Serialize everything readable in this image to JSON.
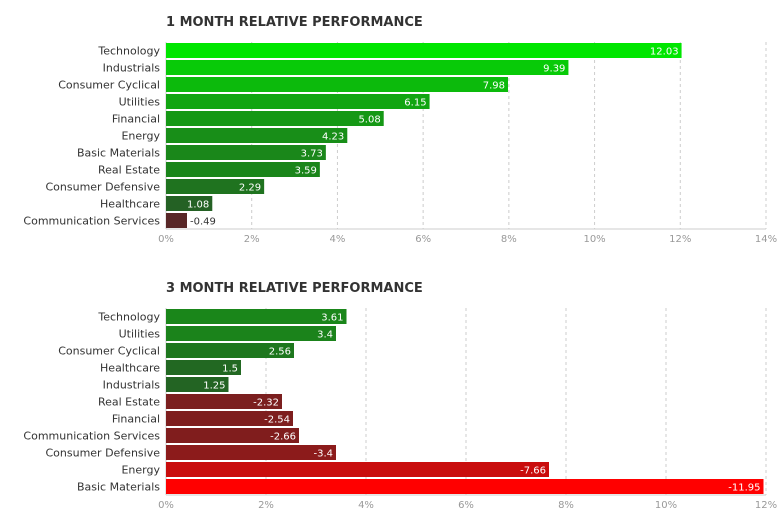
{
  "chart_data": [
    {
      "type": "bar",
      "orientation": "horizontal",
      "title": "1 MONTH RELATIVE PERFORMANCE",
      "categories": [
        "Technology",
        "Industrials",
        "Consumer Cyclical",
        "Utilities",
        "Financial",
        "Energy",
        "Basic Materials",
        "Real Estate",
        "Consumer Defensive",
        "Healthcare",
        "Communication Services"
      ],
      "values": [
        12.03,
        9.39,
        7.98,
        6.15,
        5.08,
        4.23,
        3.73,
        3.59,
        2.29,
        1.08,
        -0.49
      ],
      "value_labels": [
        "12.03",
        "9.39",
        "7.98",
        "6.15",
        "5.08",
        "4.23",
        "3.73",
        "3.59",
        "2.29",
        "1.08",
        "-0.49"
      ],
      "xlim": [
        0,
        14
      ],
      "xticks": [
        "0%",
        "2%",
        "4%",
        "6%",
        "8%",
        "10%",
        "12%",
        "14%"
      ],
      "grid": true,
      "colors": {
        "positive_strong": "#00e600",
        "positive_weak": "#2a4a2a",
        "negative_weak": "#4a2a2a",
        "negative_strong": "#ff0000"
      }
    },
    {
      "type": "bar",
      "orientation": "horizontal",
      "title": "3 MONTH RELATIVE PERFORMANCE",
      "categories": [
        "Technology",
        "Utilities",
        "Consumer Cyclical",
        "Healthcare",
        "Industrials",
        "Real Estate",
        "Financial",
        "Communication Services",
        "Consumer Defensive",
        "Energy",
        "Basic Materials"
      ],
      "values": [
        3.61,
        3.4,
        2.56,
        1.5,
        1.25,
        -2.32,
        -2.54,
        -2.66,
        -3.4,
        -7.66,
        -11.95
      ],
      "value_labels": [
        "3.61",
        "3.4",
        "2.56",
        "1.5",
        "1.25",
        "-2.32",
        "-2.54",
        "-2.66",
        "-3.4",
        "-7.66",
        "-11.95"
      ],
      "xlim": [
        0,
        12
      ],
      "xticks": [
        "0%",
        "2%",
        "4%",
        "6%",
        "8%",
        "10%",
        "12%"
      ],
      "grid": true,
      "colors": {
        "positive_strong": "#00e600",
        "positive_weak": "#2a4a2a",
        "negative_weak": "#4a2a2a",
        "negative_strong": "#ff0000"
      }
    }
  ]
}
